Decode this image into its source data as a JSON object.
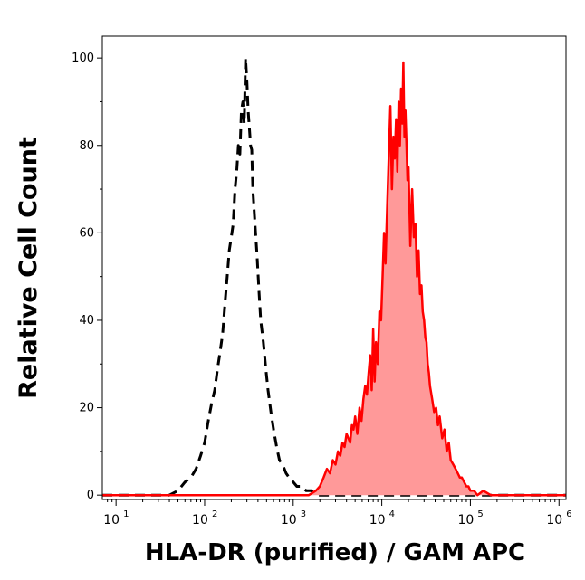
{
  "chart_data": {
    "type": "area",
    "xlabel": "HLA-DR (purified) / GAM APC",
    "ylabel": "Relative Cell Count",
    "xscale": "log",
    "xlim": [
      7,
      1200000
    ],
    "ylim": [
      -1,
      105
    ],
    "y_ticks": [
      0,
      20,
      40,
      60,
      80,
      100
    ],
    "x_ticks": [
      {
        "base": "10",
        "exp": "1",
        "value": 10
      },
      {
        "base": "10",
        "exp": "2",
        "value": 100
      },
      {
        "base": "10",
        "exp": "3",
        "value": 1000
      },
      {
        "base": "10",
        "exp": "4",
        "value": 10000
      },
      {
        "base": "10",
        "exp": "5",
        "value": 100000
      },
      {
        "base": "10",
        "exp": "6",
        "value": 1000000
      }
    ],
    "grid": false,
    "series": [
      {
        "style": "dashed-outline",
        "color": "#000000",
        "x": [
          7,
          20,
          40,
          50,
          60,
          70,
          80,
          90,
          100,
          110,
          120,
          130,
          140,
          150,
          160,
          170,
          180,
          190,
          200,
          210,
          220,
          230,
          240,
          250,
          260,
          270,
          280,
          290,
          300,
          310,
          320,
          330,
          340,
          350,
          370,
          390,
          410,
          430,
          460,
          490,
          520,
          560,
          600,
          650,
          700,
          760,
          830,
          900,
          1000,
          1100,
          1250,
          1400,
          1600,
          1800,
          2000,
          2500,
          10000,
          1200000
        ],
        "y": [
          0,
          0,
          0,
          1,
          3,
          4,
          6,
          9,
          12,
          17,
          21,
          24,
          29,
          33,
          37,
          44,
          50,
          56,
          59,
          62,
          70,
          74,
          80,
          78,
          88,
          90,
          85,
          100,
          95,
          88,
          84,
          80,
          79,
          70,
          62,
          55,
          47,
          40,
          35,
          29,
          24,
          19,
          15,
          11,
          8,
          7,
          5,
          4,
          3,
          2,
          2,
          1,
          1,
          0,
          0,
          0,
          0,
          0
        ]
      },
      {
        "style": "filled",
        "color": "#ff0000",
        "fill": "#ff9999",
        "x": [
          7,
          1500,
          1800,
          2000,
          2200,
          2400,
          2600,
          2800,
          3000,
          3200,
          3400,
          3600,
          3800,
          4000,
          4200,
          4400,
          4600,
          4800,
          5000,
          5300,
          5600,
          5900,
          6200,
          6500,
          6800,
          7100,
          7400,
          7700,
          8000,
          8300,
          8600,
          9000,
          9400,
          9800,
          10200,
          10600,
          11000,
          11500,
          12000,
          12500,
          13000,
          13500,
          14000,
          14500,
          15000,
          15500,
          16000,
          16500,
          17000,
          17500,
          18000,
          18500,
          19000,
          19500,
          20000,
          21000,
          22000,
          23000,
          24000,
          25000,
          26000,
          27000,
          28000,
          29000,
          30000,
          31000,
          32000,
          33000,
          34000,
          35000,
          37000,
          39000,
          41000,
          43000,
          45000,
          48000,
          51000,
          54000,
          57000,
          60000,
          64000,
          68000,
          72000,
          76000,
          80000,
          85000,
          90000,
          95000,
          100000,
          110000,
          120000,
          140000,
          170000,
          1200000
        ],
        "y": [
          0,
          0,
          1,
          2,
          4,
          6,
          5,
          8,
          7,
          10,
          9,
          12,
          11,
          14,
          13,
          12,
          16,
          15,
          18,
          14,
          20,
          17,
          22,
          25,
          23,
          28,
          32,
          24,
          38,
          26,
          35,
          30,
          42,
          40,
          50,
          60,
          53,
          66,
          78,
          89,
          70,
          82,
          77,
          86,
          74,
          90,
          80,
          93,
          85,
          99,
          82,
          88,
          80,
          72,
          75,
          57,
          70,
          59,
          62,
          50,
          56,
          46,
          48,
          42,
          40,
          36,
          35,
          30,
          28,
          25,
          22,
          19,
          20,
          16,
          18,
          13,
          15,
          10,
          12,
          8,
          7,
          6,
          5,
          4,
          4,
          3,
          2,
          2,
          1,
          1,
          0,
          1,
          0,
          0
        ]
      }
    ]
  }
}
